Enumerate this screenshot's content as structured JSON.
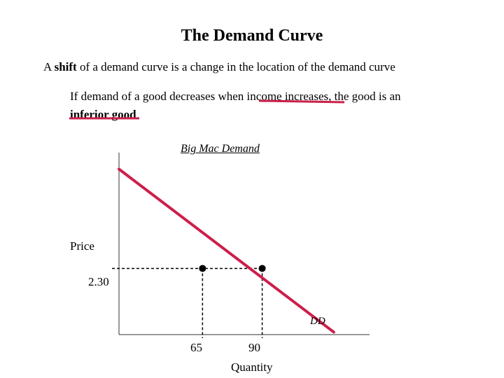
{
  "slide": {
    "title": "The Demand Curve",
    "line1": {
      "prefix": "A ",
      "bold": "shift",
      "suffix": " of a demand curve is a change in the location of the demand curve"
    },
    "line2": {
      "part1": "If demand of a good decreases when ",
      "emphasis": "income increases",
      "part2": ", the good is an ",
      "bold": "inferior good"
    },
    "underline_color": "#cc1f4a"
  },
  "chart_data": {
    "type": "line",
    "title": "Big Mac Demand",
    "xlabel": "Quantity",
    "ylabel": "Price",
    "series": [
      {
        "name": "DD",
        "color": "#cc1f4a",
        "points": [
          [
            30,
            3.5
          ],
          [
            120,
            1.53
          ]
        ]
      }
    ],
    "y_ticks": [
      {
        "value": 2.3,
        "label": "2.30"
      }
    ],
    "x_ticks": [
      {
        "value": 65,
        "label": "65"
      },
      {
        "value": 90,
        "label": "90"
      }
    ],
    "markers": [
      {
        "x": 65,
        "y": 2.3
      },
      {
        "x": 90,
        "y": 2.3
      }
    ],
    "xlim": [
      30,
      135
    ],
    "ylim": [
      1.5,
      3.7
    ],
    "grid": false
  }
}
